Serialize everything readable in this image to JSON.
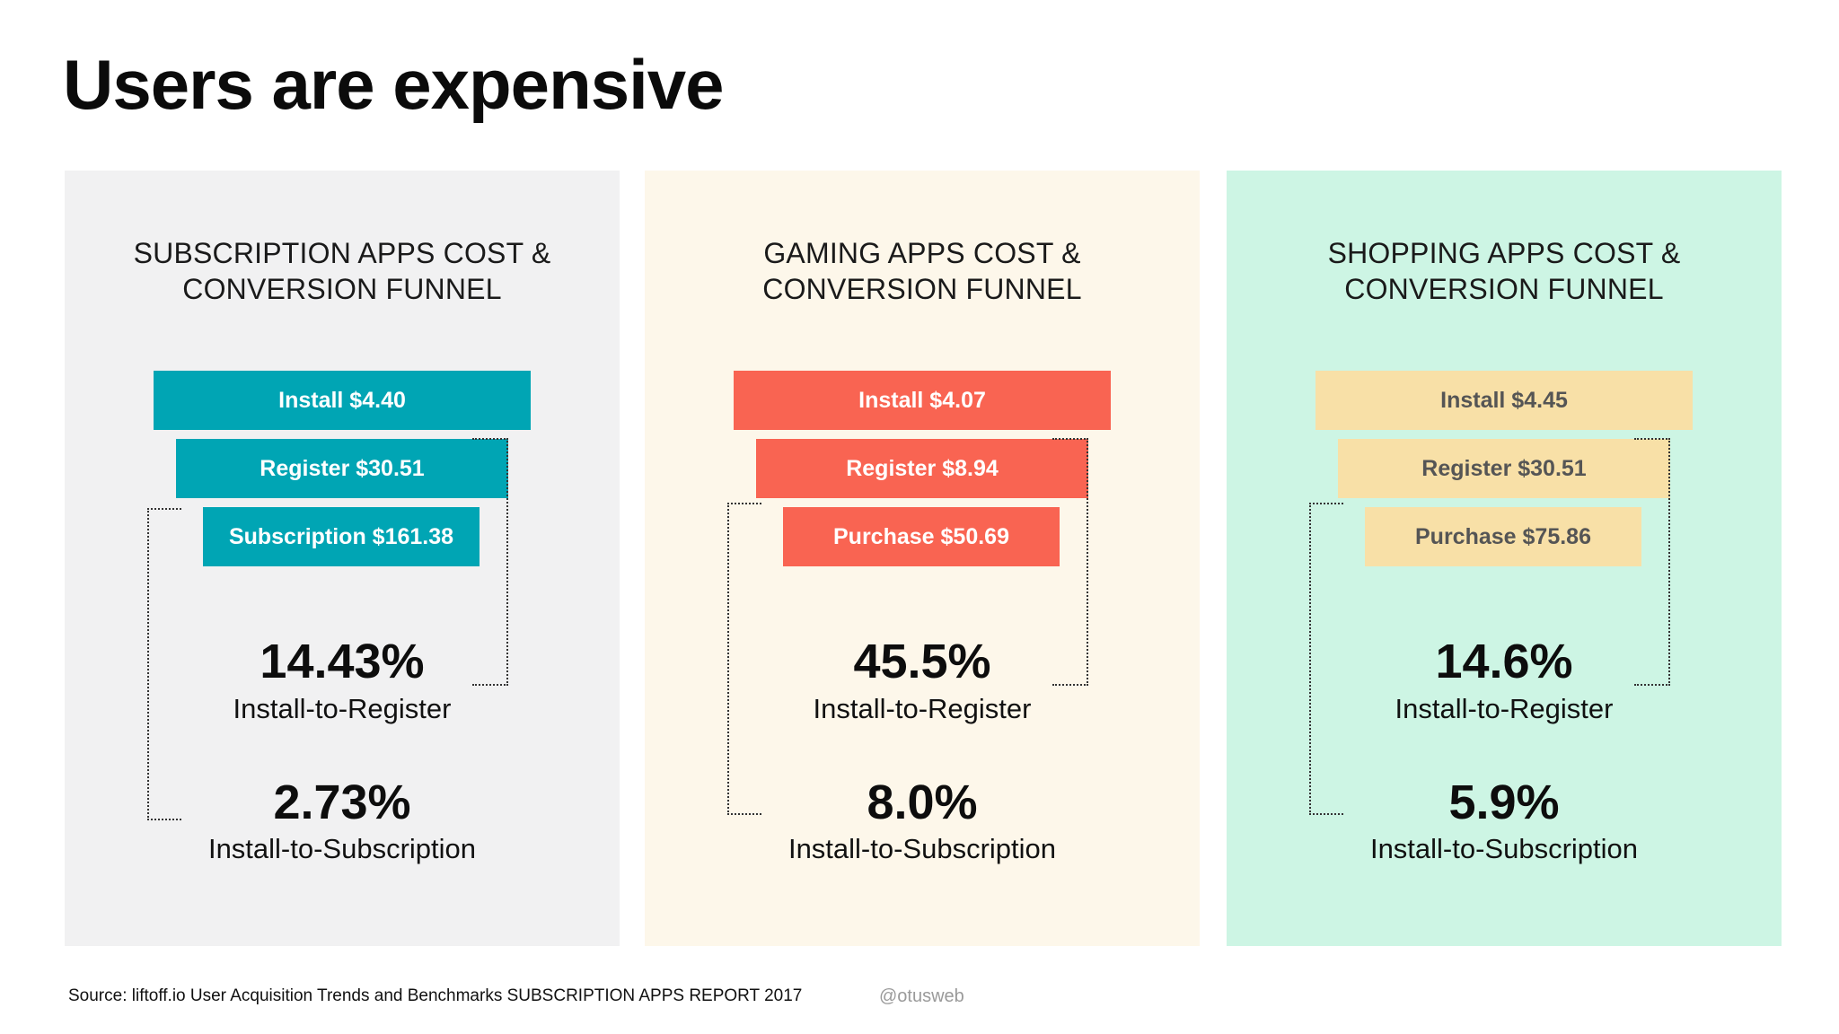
{
  "slide": {
    "title": "Users are expensive",
    "source": "Source: liftoff.io User Acquisition Trends and Benchmarks SUBSCRIPTION APPS REPORT 2017",
    "handle": "@otusweb"
  },
  "panels": [
    {
      "title_line1": "SUBSCRIPTION APPS COST &",
      "title_line2": "CONVERSION FUNNEL",
      "background": "#f1f1f2",
      "bar_color": "#00a5b4",
      "bar_text_color": "#ffffff",
      "bars": [
        "Install $4.40",
        "Register $30.51",
        "Subscription $161.38"
      ],
      "rate1": "14.43%",
      "rate1_label": "Install-to-Register",
      "rate2": "2.73%",
      "rate2_label": "Install-to-Subscription"
    },
    {
      "title_line1": "GAMING APPS COST &",
      "title_line2": "CONVERSION FUNNEL",
      "background": "#fdf7ea",
      "bar_color": "#f96452",
      "bar_text_color": "#ffffff",
      "bars": [
        "Install $4.07",
        "Register $8.94",
        "Purchase $50.69"
      ],
      "rate1": "45.5%",
      "rate1_label": "Install-to-Register",
      "rate2": "8.0%",
      "rate2_label": "Install-to-Subscription"
    },
    {
      "title_line1": "SHOPPING APPS COST &",
      "title_line2": "CONVERSION FUNNEL",
      "background": "#cdf5e4",
      "bar_color": "#f8e0a7",
      "bar_text_color": "#555555",
      "bars": [
        "Install $4.45",
        "Register $30.51",
        "Purchase $75.86"
      ],
      "rate1": "14.6%",
      "rate1_label": "Install-to-Register",
      "rate2": "5.9%",
      "rate2_label": "Install-to-Subscription"
    }
  ]
}
